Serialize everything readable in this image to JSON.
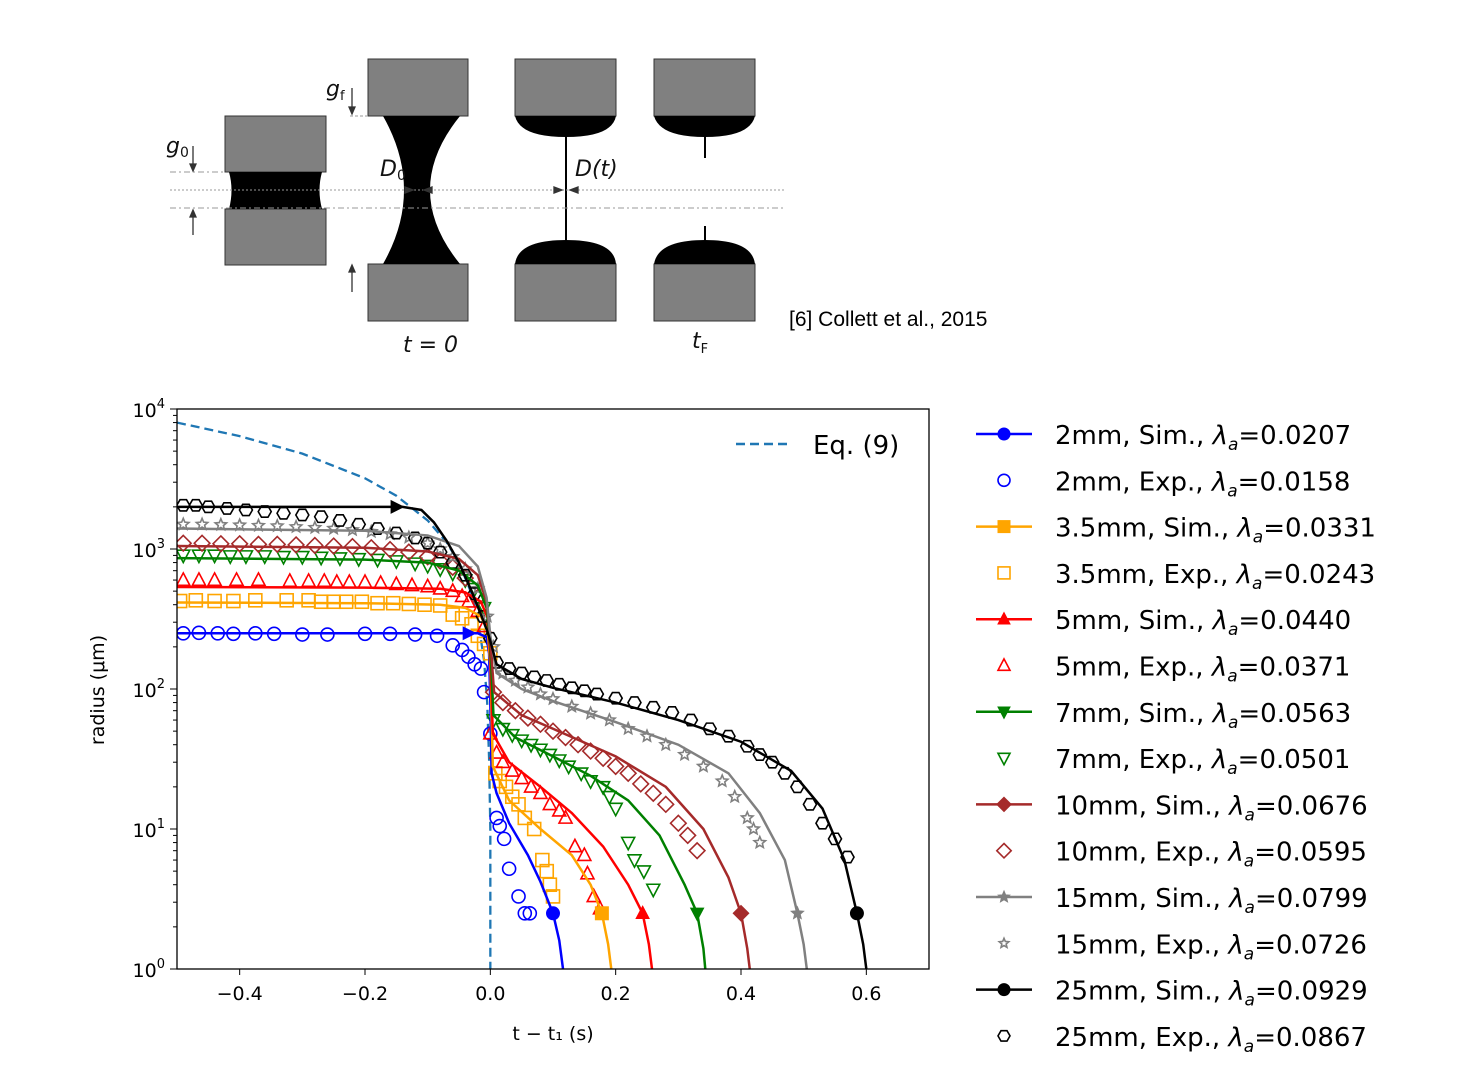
{
  "diagram": {
    "labels": {
      "g0": "g",
      "g0_sub": "0",
      "gf": "g",
      "gf_sub": "f",
      "D0": "D",
      "D0_sub": "0",
      "Dt": "D(t)",
      "t0": "t = 0",
      "tF": "t",
      "tF_sub": "F"
    },
    "citation": "[6] Collett et al., 2015"
  },
  "chart_data": {
    "type": "line",
    "xlabel": "t − t₁ (s)",
    "ylabel": "radius (μm)",
    "xlim": [
      -0.5,
      0.7
    ],
    "ylim": [
      1,
      10000
    ],
    "yscale": "log",
    "xticks": [
      -0.4,
      -0.2,
      0.0,
      0.2,
      0.4,
      0.6
    ],
    "xtick_labels": [
      "−0.4",
      "−0.2",
      "0.0",
      "0.2",
      "0.4",
      "0.6"
    ],
    "yticks": [
      1,
      10,
      100,
      1000,
      10000
    ],
    "ytick_labels": [
      {
        "base": "10",
        "exp": "0"
      },
      {
        "base": "10",
        "exp": "1"
      },
      {
        "base": "10",
        "exp": "2"
      },
      {
        "base": "10",
        "exp": "3"
      },
      {
        "base": "10",
        "exp": "4"
      }
    ],
    "grid": false,
    "legend_placement": "outside-right",
    "reference": {
      "name": "Eq. (9)",
      "color": "#1f77b4",
      "style": "dashed",
      "legend_placement": "top-right",
      "x": [
        -0.5,
        -0.4,
        -0.3,
        -0.2,
        -0.15,
        -0.1,
        -0.07,
        -0.05,
        -0.03,
        -0.02,
        -0.01,
        -0.005,
        -0.002,
        0,
        0
      ],
      "y": [
        8000,
        6400,
        4800,
        3200,
        2400,
        1600,
        1120,
        800,
        480,
        320,
        160,
        80,
        32,
        10,
        1
      ]
    },
    "series": [
      {
        "name": "2mm, Sim., λa=0.0207",
        "label_pre": "2mm, Sim., ",
        "lambda": "0.0207",
        "color": "#0000ff",
        "marker": "circle",
        "kind": "sim",
        "arrow_end": [
          -0.025,
          250
        ],
        "x": [
          -0.5,
          -0.02,
          -0.006,
          -0.002,
          0,
          0.002,
          0.01,
          0.03,
          0.06,
          0.08,
          0.1,
          0.11,
          0.116
        ],
        "y": [
          250,
          250,
          235,
          180,
          80,
          25,
          18,
          11,
          6.5,
          4.2,
          2.5,
          1.6,
          1
        ]
      },
      {
        "name": "2mm, Exp., λa=0.0158",
        "label_pre": "2mm, Exp., ",
        "lambda": "0.0158",
        "color": "#0000ff",
        "marker": "circle",
        "kind": "exp",
        "x": [
          -0.49,
          -0.465,
          -0.435,
          -0.41,
          -0.375,
          -0.345,
          -0.3,
          -0.26,
          -0.2,
          -0.16,
          -0.12,
          -0.085,
          -0.06,
          -0.045,
          -0.035,
          -0.025,
          -0.015,
          -0.01,
          0,
          0.01,
          0.015,
          0.022,
          0.03,
          0.045,
          0.055,
          0.063
        ],
        "y": [
          250,
          252,
          250,
          248,
          250,
          248,
          245,
          245,
          248,
          248,
          245,
          240,
          205,
          190,
          170,
          150,
          140,
          95,
          48,
          12,
          10.5,
          8.5,
          5.2,
          3.3,
          2.5,
          2.5
        ]
      },
      {
        "name": "3.5mm, Sim., λa=0.0331",
        "label_pre": "3.5mm, Sim., ",
        "lambda": "0.0331",
        "color": "#ffa500",
        "marker": "square",
        "kind": "sim",
        "x": [
          -0.5,
          -0.2,
          -0.08,
          -0.04,
          -0.015,
          -0.004,
          0,
          0.004,
          0.03,
          0.08,
          0.13,
          0.16,
          0.178,
          0.188,
          0.193
        ],
        "y": [
          415,
          410,
          400,
          380,
          330,
          260,
          150,
          28,
          16,
          10,
          6.5,
          4,
          2.5,
          1.5,
          1
        ]
      },
      {
        "name": "3.5mm, Exp., λa=0.0243",
        "label_pre": "3.5mm, Exp., ",
        "lambda": "0.0243",
        "color": "#ffa500",
        "marker": "square",
        "kind": "exp",
        "x": [
          -0.495,
          -0.47,
          -0.44,
          -0.41,
          -0.375,
          -0.325,
          -0.29,
          -0.27,
          -0.25,
          -0.23,
          -0.205,
          -0.18,
          -0.155,
          -0.13,
          -0.105,
          -0.08,
          -0.06,
          -0.045,
          -0.03,
          -0.02,
          -0.01,
          0.0,
          0.008,
          0.015,
          0.025,
          0.035,
          0.045,
          0.055,
          0.07,
          0.083,
          0.09,
          0.095,
          0.1
        ],
        "y": [
          425,
          430,
          425,
          425,
          430,
          430,
          430,
          420,
          420,
          420,
          420,
          410,
          410,
          405,
          400,
          395,
          340,
          320,
          290,
          240,
          210,
          180,
          25,
          22,
          20,
          17,
          15,
          12,
          10,
          6,
          5,
          4,
          3.3
        ]
      },
      {
        "name": "5mm, Sim., λa=0.0440",
        "label_pre": "5mm, Sim., ",
        "lambda": "0.0440",
        "color": "#ff0000",
        "marker": "triangle-up",
        "kind": "sim",
        "x": [
          -0.5,
          -0.2,
          -0.08,
          -0.04,
          -0.015,
          -0.004,
          0,
          0.004,
          0.03,
          0.08,
          0.13,
          0.18,
          0.22,
          0.243,
          0.253,
          0.258
        ],
        "y": [
          535,
          530,
          520,
          490,
          420,
          320,
          170,
          48,
          30,
          20,
          13,
          7.5,
          4,
          2.5,
          1.5,
          1
        ]
      },
      {
        "name": "5mm, Exp., λa=0.0371",
        "label_pre": "5mm, Exp., ",
        "lambda": "0.0371",
        "color": "#ff0000",
        "marker": "triangle-up",
        "kind": "exp",
        "x": [
          -0.49,
          -0.465,
          -0.44,
          -0.405,
          -0.37,
          -0.32,
          -0.29,
          -0.265,
          -0.245,
          -0.225,
          -0.2,
          -0.175,
          -0.15,
          -0.125,
          -0.1,
          -0.08,
          -0.06,
          -0.045,
          -0.035,
          -0.02,
          -0.01,
          0,
          0.01,
          0.02,
          0.035,
          0.05,
          0.065,
          0.08,
          0.095,
          0.11,
          0.12,
          0.135,
          0.15,
          0.155,
          0.165,
          0.175
        ],
        "y": [
          600,
          600,
          600,
          600,
          600,
          590,
          590,
          590,
          580,
          580,
          580,
          570,
          560,
          550,
          540,
          520,
          500,
          460,
          420,
          360,
          280,
          48,
          35,
          30,
          26,
          23,
          20,
          18,
          15,
          13.5,
          12,
          7.5,
          6.5,
          4.8,
          3.3,
          2.7
        ]
      },
      {
        "name": "7mm, Sim., λa=0.0563",
        "label_pre": "7mm, Sim., ",
        "lambda": "0.0563",
        "color": "#008000",
        "marker": "triangle-down",
        "kind": "sim",
        "x": [
          -0.5,
          -0.2,
          -0.1,
          -0.05,
          -0.02,
          -0.006,
          0,
          0.005,
          0.04,
          0.1,
          0.16,
          0.22,
          0.27,
          0.31,
          0.33,
          0.34,
          0.343
        ],
        "y": [
          860,
          840,
          800,
          700,
          550,
          380,
          200,
          65,
          45,
          33,
          24,
          16,
          9,
          4,
          2.5,
          1.4,
          1
        ]
      },
      {
        "name": "7mm, Exp., λa=0.0501",
        "label_pre": "7mm, Exp., ",
        "lambda": "0.0501",
        "color": "#008000",
        "marker": "triangle-down",
        "kind": "exp",
        "x": [
          -0.49,
          -0.465,
          -0.44,
          -0.415,
          -0.39,
          -0.36,
          -0.33,
          -0.3,
          -0.27,
          -0.24,
          -0.21,
          -0.18,
          -0.15,
          -0.12,
          -0.1,
          -0.08,
          -0.06,
          -0.04,
          -0.025,
          -0.01,
          0.005,
          0.02,
          0.035,
          0.05,
          0.065,
          0.08,
          0.095,
          0.11,
          0.125,
          0.145,
          0.16,
          0.18,
          0.19,
          0.2,
          0.22,
          0.23,
          0.245,
          0.26
        ],
        "y": [
          900,
          900,
          900,
          890,
          890,
          890,
          880,
          880,
          870,
          860,
          850,
          840,
          820,
          790,
          760,
          720,
          670,
          600,
          520,
          380,
          60,
          52,
          47,
          43,
          40,
          37,
          34,
          31,
          28,
          25,
          22,
          20,
          17,
          14,
          8,
          6,
          5,
          3.7
        ]
      },
      {
        "name": "10mm, Sim., λa=0.0676",
        "label_pre": "10mm, Sim., ",
        "lambda": "0.0676",
        "color": "#a52a2a",
        "marker": "diamond",
        "kind": "sim",
        "x": [
          -0.5,
          -0.2,
          -0.1,
          -0.05,
          -0.02,
          -0.006,
          0,
          0.006,
          0.05,
          0.1,
          0.2,
          0.28,
          0.34,
          0.38,
          0.4,
          0.41,
          0.414
        ],
        "y": [
          1050,
          1020,
          960,
          850,
          650,
          420,
          220,
          95,
          65,
          52,
          33,
          20,
          10,
          4.5,
          2.5,
          1.4,
          1
        ]
      },
      {
        "name": "10mm, Exp., λa=0.0595",
        "label_pre": "10mm, Exp., ",
        "lambda": "0.0595",
        "color": "#a52a2a",
        "marker": "diamond",
        "kind": "exp",
        "x": [
          -0.49,
          -0.46,
          -0.43,
          -0.4,
          -0.37,
          -0.34,
          -0.31,
          -0.28,
          -0.25,
          -0.22,
          -0.19,
          -0.16,
          -0.13,
          -0.1,
          -0.08,
          -0.06,
          -0.04,
          -0.02,
          0.005,
          0.02,
          0.04,
          0.06,
          0.08,
          0.1,
          0.12,
          0.14,
          0.16,
          0.18,
          0.2,
          0.22,
          0.24,
          0.26,
          0.28,
          0.3,
          0.315,
          0.33
        ],
        "y": [
          1100,
          1100,
          1090,
          1090,
          1080,
          1080,
          1070,
          1060,
          1050,
          1040,
          1020,
          990,
          950,
          880,
          820,
          740,
          620,
          450,
          95,
          80,
          70,
          62,
          56,
          50,
          45,
          40,
          36,
          32,
          28,
          25,
          21,
          18,
          15,
          11,
          9,
          7
        ]
      },
      {
        "name": "15mm, Sim., λa=0.0799",
        "label_pre": "15mm, Sim., ",
        "lambda": "0.0799",
        "color": "#808080",
        "marker": "star",
        "kind": "sim",
        "x": [
          -0.5,
          -0.2,
          -0.1,
          -0.05,
          -0.02,
          -0.006,
          0,
          0.01,
          0.05,
          0.1,
          0.2,
          0.3,
          0.38,
          0.43,
          0.47,
          0.49,
          0.5,
          0.505
        ],
        "y": [
          1400,
          1350,
          1250,
          1050,
          750,
          450,
          240,
          130,
          100,
          82,
          58,
          40,
          25,
          13,
          6,
          2.5,
          1.5,
          1
        ]
      },
      {
        "name": "15mm, Exp., λa=0.0726",
        "label_pre": "15mm, Exp., ",
        "lambda": "0.0726",
        "color": "#808080",
        "marker": "star",
        "kind": "exp",
        "x": [
          -0.49,
          -0.46,
          -0.43,
          -0.4,
          -0.37,
          -0.34,
          -0.31,
          -0.28,
          -0.25,
          -0.22,
          -0.19,
          -0.16,
          -0.13,
          -0.1,
          -0.08,
          -0.06,
          -0.04,
          -0.02,
          -0.005,
          0.005,
          0.02,
          0.04,
          0.06,
          0.08,
          0.1,
          0.13,
          0.16,
          0.19,
          0.22,
          0.25,
          0.28,
          0.31,
          0.34,
          0.37,
          0.39,
          0.41,
          0.42,
          0.43
        ],
        "y": [
          1500,
          1500,
          1490,
          1480,
          1470,
          1460,
          1440,
          1420,
          1400,
          1370,
          1330,
          1280,
          1210,
          1100,
          1000,
          880,
          720,
          520,
          330,
          200,
          130,
          115,
          103,
          92,
          85,
          75,
          67,
          60,
          52,
          46,
          40,
          34,
          28,
          22,
          17,
          12,
          10,
          8
        ]
      },
      {
        "name": "25mm, Sim., λa=0.0929",
        "label_pre": "25mm, Sim., ",
        "lambda": "0.0929",
        "color": "#000000",
        "marker": "circle",
        "kind": "sim",
        "arrow_end": [
          -0.14,
          2000
        ],
        "x": [
          -0.5,
          -0.14,
          -0.11,
          -0.09,
          -0.07,
          -0.05,
          -0.03,
          -0.015,
          -0.005,
          0,
          0.01,
          0.05,
          0.1,
          0.2,
          0.3,
          0.4,
          0.48,
          0.53,
          0.565,
          0.585,
          0.595,
          0.6
        ],
        "y": [
          2000,
          2000,
          1900,
          1550,
          1150,
          800,
          500,
          340,
          260,
          220,
          150,
          118,
          102,
          80,
          60,
          42,
          26,
          14,
          6,
          2.5,
          1.5,
          1
        ]
      },
      {
        "name": "25mm, Exp., λa=0.0867",
        "label_pre": "25mm, Exp., ",
        "lambda": "0.0867",
        "color": "#000000",
        "marker": "hexagon",
        "kind": "exp",
        "x": [
          -0.49,
          -0.47,
          -0.45,
          -0.42,
          -0.39,
          -0.36,
          -0.33,
          -0.3,
          -0.27,
          -0.24,
          -0.21,
          -0.18,
          -0.15,
          -0.12,
          -0.1,
          -0.08,
          -0.06,
          -0.04,
          -0.025,
          -0.012,
          0.0,
          0.01,
          0.03,
          0.05,
          0.07,
          0.09,
          0.11,
          0.13,
          0.15,
          0.17,
          0.2,
          0.23,
          0.26,
          0.29,
          0.32,
          0.35,
          0.38,
          0.41,
          0.43,
          0.45,
          0.47,
          0.49,
          0.51,
          0.53,
          0.55,
          0.57
        ],
        "y": [
          2050,
          2050,
          2000,
          1950,
          1900,
          1850,
          1800,
          1750,
          1700,
          1600,
          1500,
          1400,
          1300,
          1200,
          1100,
          950,
          800,
          650,
          480,
          330,
          230,
          155,
          140,
          130,
          122,
          115,
          108,
          102,
          97,
          92,
          86,
          80,
          74,
          68,
          60,
          52,
          46,
          39,
          34,
          30,
          25,
          20,
          15,
          11,
          8.5,
          6.3
        ]
      }
    ],
    "end_markers": {
      "y": 2.5,
      "x": [
        0.1,
        0.178,
        0.243,
        0.33,
        0.4,
        0.49,
        0.585
      ]
    }
  }
}
